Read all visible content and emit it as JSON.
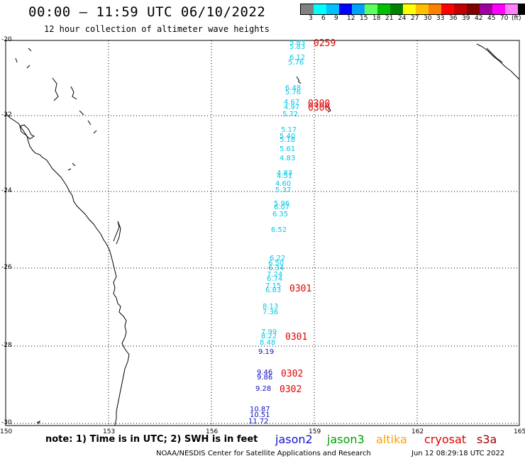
{
  "title": "00:00 – 11:59 UTC 06/10/2022",
  "subtitle": "12 hour collection of altimeter wave heights",
  "legend": {
    "colors": [
      "#808080",
      "#00ffff",
      "#00c0ff",
      "#0000ff",
      "#00a0ff",
      "#60ff60",
      "#00c000",
      "#008000",
      "#ffff00",
      "#ffc000",
      "#ff8000",
      "#ff0000",
      "#c00000",
      "#800000",
      "#a000a0",
      "#ff00ff",
      "#ff80ff",
      "#000000"
    ],
    "labels": [
      "3",
      "6",
      "9",
      "12",
      "15",
      "18",
      "21",
      "24",
      "27",
      "30",
      "33",
      "36",
      "39",
      "42",
      "45",
      "70",
      "(ft)"
    ]
  },
  "lat_labels": [
    "-20",
    "-22",
    "-24",
    "-26",
    "-28",
    "-30"
  ],
  "lon_labels": [
    "150",
    "153",
    "156",
    "159",
    "162",
    "165"
  ],
  "observations": [
    {
      "text": "5.83",
      "color": "#00c8e8"
    },
    {
      "text": "5.83",
      "color": "#00c8e8"
    },
    {
      "text": "6.12",
      "color": "#00c8e8"
    },
    {
      "text": "5.76",
      "color": "#00c8e8"
    },
    {
      "text": "6.48",
      "color": "#00c8e8"
    },
    {
      "text": "5.76",
      "color": "#00c8e8"
    },
    {
      "text": "4.67",
      "color": "#00c8e8"
    },
    {
      "text": "4.97",
      "color": "#00c8e8"
    },
    {
      "text": "5.72",
      "color": "#00c8e8"
    },
    {
      "text": "5.17",
      "color": "#00c8e8"
    },
    {
      "text": "5.40",
      "color": "#00c8e8"
    },
    {
      "text": "5.18",
      "color": "#00c8e8"
    },
    {
      "text": "5.61",
      "color": "#00c8e8"
    },
    {
      "text": "4.83",
      "color": "#00c8e8"
    },
    {
      "text": "4.83",
      "color": "#00c8e8"
    },
    {
      "text": "4.51",
      "color": "#00c8e8"
    },
    {
      "text": "4.60",
      "color": "#00c8e8"
    },
    {
      "text": "5.37",
      "color": "#00c8e8"
    },
    {
      "text": "5.96",
      "color": "#00c8e8"
    },
    {
      "text": "6.07",
      "color": "#00c8e8"
    },
    {
      "text": "6.35",
      "color": "#00c8e8"
    },
    {
      "text": "6.52",
      "color": "#00c8e8"
    },
    {
      "text": "6.22",
      "color": "#00c8e8"
    },
    {
      "text": "6.50",
      "color": "#00c8e8"
    },
    {
      "text": "6.34",
      "color": "#00c8e8"
    },
    {
      "text": "7.24",
      "color": "#00c8e8"
    },
    {
      "text": "6.74",
      "color": "#00c8e8"
    },
    {
      "text": "7.15",
      "color": "#00c8e8"
    },
    {
      "text": "6.83",
      "color": "#00c8e8"
    },
    {
      "text": "8.13",
      "color": "#00c8e8"
    },
    {
      "text": "7.36",
      "color": "#00c8e8"
    },
    {
      "text": "7.99",
      "color": "#00c8e8"
    },
    {
      "text": "8.22",
      "color": "#00c8e8"
    },
    {
      "text": "8.48",
      "color": "#00c8e8"
    },
    {
      "text": "9.19",
      "color": "#1010c0"
    },
    {
      "text": "9.46",
      "color": "#1010c0"
    },
    {
      "text": "9.86",
      "color": "#1010c0"
    },
    {
      "text": "9.28",
      "color": "#1010c0"
    },
    {
      "text": "10.87",
      "color": "#1010c0"
    },
    {
      "text": "10.51",
      "color": "#1010c0"
    },
    {
      "text": "11.72",
      "color": "#1010c0"
    }
  ],
  "times": [
    "0259",
    "0300",
    "0300",
    "0301",
    "0301",
    "0302",
    "0302"
  ],
  "note": "note: 1) Time is in UTC; 2) SWH is in feet",
  "satellites": [
    {
      "name": "jason2",
      "color": "#1010d0"
    },
    {
      "name": "jason3",
      "color": "#00a000"
    },
    {
      "name": "altika",
      "color": "#ffa000"
    },
    {
      "name": "cryosat",
      "color": "#e00000"
    },
    {
      "name": "s3a",
      "color": "#a00000"
    }
  ],
  "footer_left": "NOAA/NESDIS Center for Satellite Applications and Research",
  "footer_right": "Jun 12 08:29:18 UTC 2022"
}
